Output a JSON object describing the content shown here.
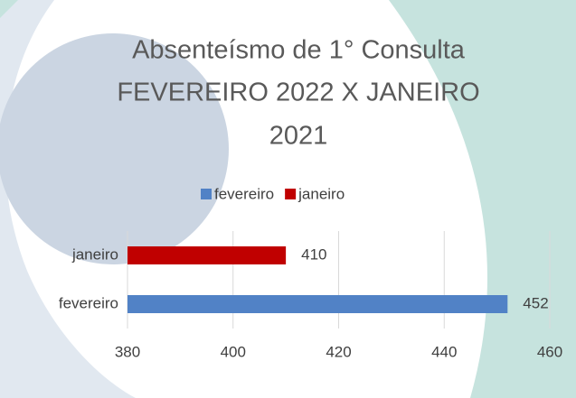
{
  "chart_data": {
    "type": "hbar",
    "title": [
      "Absenteísmo de 1° Consulta",
      "FEVEREIRO 2022 X JANEIRO",
      "2021"
    ],
    "categories": [
      "fevereiro",
      "janeiro"
    ],
    "series": [
      {
        "name": "fevereiro",
        "color": "#5182c6",
        "values": [
          452,
          null
        ],
        "value_labels": [
          "452",
          null
        ]
      },
      {
        "name": "janeiro",
        "color": "#c00000",
        "values": [
          null,
          410
        ],
        "value_labels": [
          null,
          "410"
        ]
      }
    ],
    "xlim": [
      380,
      460
    ],
    "xticks": [
      380,
      400,
      420,
      440,
      460
    ],
    "grid": true,
    "legend": "top"
  }
}
